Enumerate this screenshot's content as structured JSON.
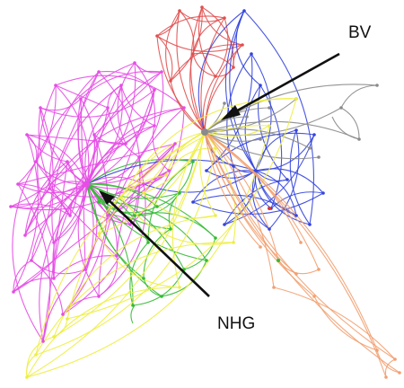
{
  "labels": {
    "bv": "BV",
    "nhg": "NHG"
  },
  "colors": {
    "magenta": "#e64ce6",
    "blue": "#3344dd",
    "gray": "#8a8a8a",
    "red": "#e05050",
    "green": "#33bb33",
    "yellow": "#eeee44",
    "orange": "#f2a070",
    "arrow": "#111111"
  }
}
